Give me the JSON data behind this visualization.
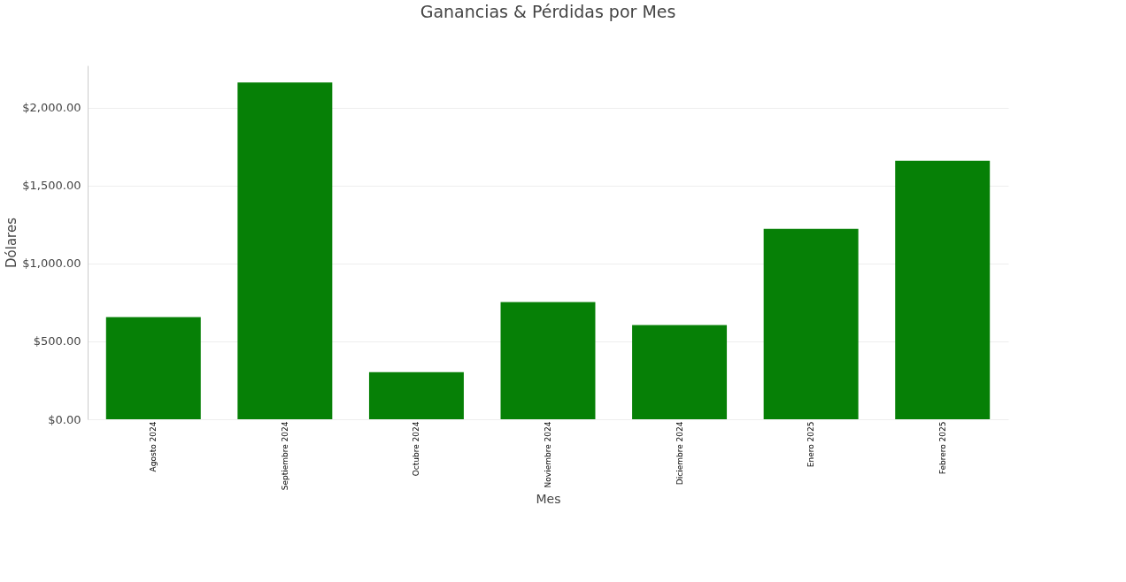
{
  "chart_data": {
    "type": "bar",
    "title": "Ganancias & Pérdidas por Mes",
    "xlabel": "Mes",
    "ylabel": "Dólares",
    "categories": [
      "Agosto 2024",
      "Septiembre 2024",
      "Octubre 2024",
      "Noviembre 2024",
      "Diciembre 2024",
      "Enero 2025",
      "Febrero 2025"
    ],
    "values": [
      656,
      2161,
      302,
      752,
      604,
      1222,
      1659
    ],
    "color": "#068006",
    "ylim": [
      0,
      2270
    ],
    "yticks": [
      {
        "value": 0,
        "label": "$0.00"
      },
      {
        "value": 500,
        "label": "$500.00"
      },
      {
        "value": 1000,
        "label": "$1,000.00"
      },
      {
        "value": 1500,
        "label": "$1,500.00"
      },
      {
        "value": 2000,
        "label": "$2,000.00"
      }
    ],
    "grid": "y"
  }
}
